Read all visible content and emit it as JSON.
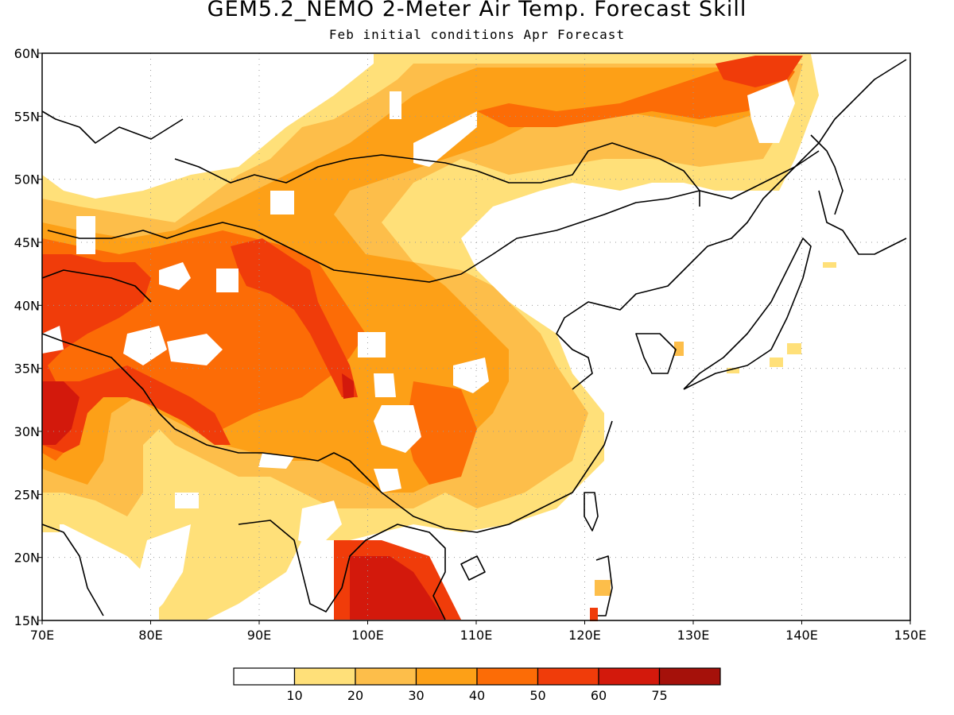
{
  "title": "GEM5.2_NEMO 2-Meter Air Temp. Forecast Skill",
  "subtitle": "Feb initial conditions  Apr Forecast",
  "map": {
    "lon_range": [
      70,
      150
    ],
    "lat_range": [
      15,
      60
    ],
    "lon_ticks": [
      "70E",
      "80E",
      "90E",
      "100E",
      "110E",
      "120E",
      "130E",
      "140E",
      "150E"
    ],
    "lat_ticks": [
      "15N",
      "20N",
      "25N",
      "30N",
      "35N",
      "40N",
      "45N",
      "50N",
      "55N",
      "60N"
    ],
    "grid": "dotted"
  },
  "legend": {
    "labels": [
      "10",
      "20",
      "30",
      "40",
      "50",
      "60",
      "75"
    ],
    "colors": [
      "#ffffff",
      "#ffe079",
      "#fdbe4a",
      "#fda017",
      "#fc6c06",
      "#f03c0a",
      "#d3190c",
      "#a5110a"
    ]
  },
  "chart_data": {
    "type": "heatmap",
    "variable": "2-Meter Air Temp. Forecast Skill",
    "levels": [
      10,
      20,
      30,
      40,
      50,
      60,
      75
    ],
    "xlim": [
      70,
      150
    ],
    "ylim": [
      15,
      60
    ]
  }
}
